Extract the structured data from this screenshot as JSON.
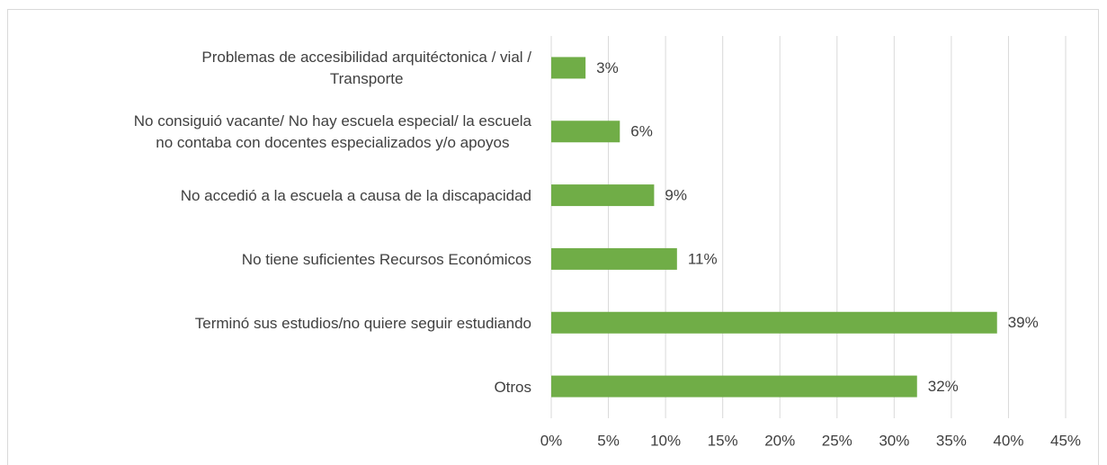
{
  "chart_data": {
    "type": "bar",
    "orientation": "horizontal",
    "categories": [
      [
        "Problemas de accesibilidad arquitéctonica / vial /",
        "Transporte"
      ],
      [
        "No consiguió vacante/ No hay escuela especial/ la escuela",
        "no contaba con docentes especializados y/o apoyos"
      ],
      [
        "No accedió a la escuela a causa de la discapacidad"
      ],
      [
        "No tiene suficientes Recursos Económicos"
      ],
      [
        "Terminó sus estudios/no quiere seguir estudiando"
      ],
      [
        "Otros"
      ]
    ],
    "values": [
      3,
      6,
      9,
      11,
      39,
      32
    ],
    "value_labels": [
      "3%",
      "6%",
      "9%",
      "11%",
      "39%",
      "32%"
    ],
    "color": "#70ad47",
    "xlim": [
      0,
      45
    ],
    "xticks": [
      {
        "value": 0,
        "label": "0%"
      },
      {
        "value": 5,
        "label": "5%"
      },
      {
        "value": 10,
        "label": "10%"
      },
      {
        "value": 15,
        "label": "15%"
      },
      {
        "value": 20,
        "label": "20%"
      },
      {
        "value": 25,
        "label": "25%"
      },
      {
        "value": 30,
        "label": "30%"
      },
      {
        "value": 35,
        "label": "35%"
      },
      {
        "value": 40,
        "label": "40%"
      },
      {
        "value": 45,
        "label": "45%"
      }
    ],
    "grid": true
  }
}
